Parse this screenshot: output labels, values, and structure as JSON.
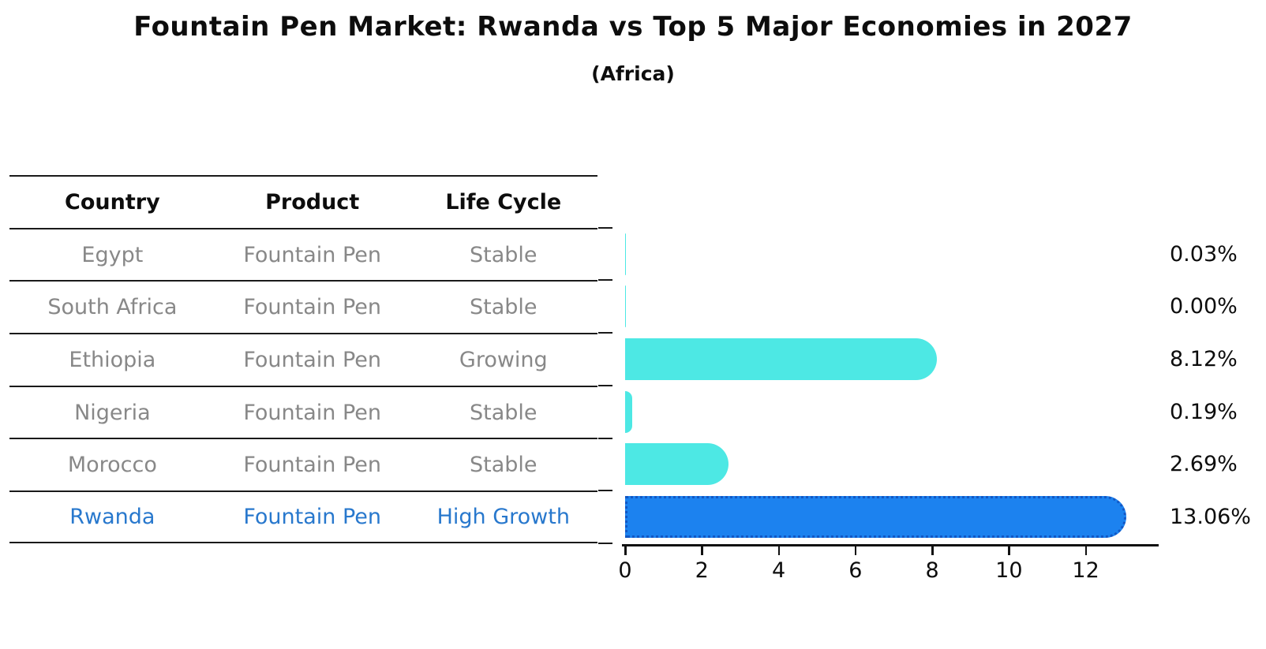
{
  "title": "Fountain Pen Market: Rwanda vs Top 5 Major Economies in 2027",
  "subtitle": "(Africa)",
  "colors": {
    "bar_default": "#4DE8E4",
    "bar_highlight": "#1C82EF",
    "bar_highlight_border": "#1257C4",
    "highlight_text": "#2878CD",
    "table_text": "#888888",
    "heading_text": "#0d0d0d",
    "line": "#1a1a1a"
  },
  "table": {
    "columns": [
      "Country",
      "Product",
      "Life Cycle"
    ],
    "rows": [
      {
        "country": "Egypt",
        "product": "Fountain Pen",
        "life_cycle": "Stable",
        "highlight": false
      },
      {
        "country": "South Africa",
        "product": "Fountain Pen",
        "life_cycle": "Stable",
        "highlight": false
      },
      {
        "country": "Ethiopia",
        "product": "Fountain Pen",
        "life_cycle": "Growing",
        "highlight": false
      },
      {
        "country": "Nigeria",
        "product": "Fountain Pen",
        "life_cycle": "Stable",
        "highlight": false
      },
      {
        "country": "Morocco",
        "product": "Fountain Pen",
        "life_cycle": "Stable",
        "highlight": false
      },
      {
        "country": "Rwanda",
        "product": "Fountain Pen",
        "life_cycle": "High Growth",
        "highlight": true
      }
    ]
  },
  "chart_data": {
    "type": "bar",
    "orientation": "horizontal",
    "title": "Fountain Pen Market: Rwanda vs Top 5 Major Economies in 2027",
    "subtitle": "(Africa)",
    "categories": [
      "Egypt",
      "South Africa",
      "Ethiopia",
      "Nigeria",
      "Morocco",
      "Rwanda"
    ],
    "values": [
      0.03,
      0.0,
      8.12,
      0.19,
      2.69,
      13.06
    ],
    "value_labels": [
      "0.03%",
      "0.00%",
      "8.12%",
      "0.19%",
      "2.69%",
      "13.06%"
    ],
    "highlight_category": "Rwanda",
    "x_ticks": [
      0,
      2,
      4,
      6,
      8,
      10,
      12
    ],
    "xlim": [
      0,
      13.9
    ],
    "grid": false,
    "legend": false
  }
}
